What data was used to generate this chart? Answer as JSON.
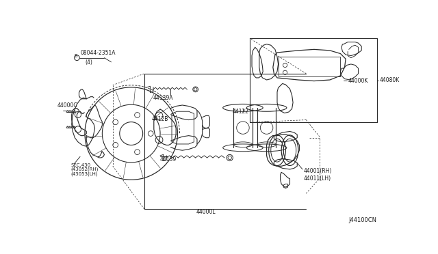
{
  "bg_color": "#ffffff",
  "line_color": "#2a2a2a",
  "label_color": "#1a1a1a",
  "diagram_id": "J44100CN",
  "labels": {
    "bolt": "B  08044-2351A\n     (4)",
    "hub": "44000C",
    "sec": "SEC.430\n(43052(RH)\n(43053(LH)",
    "slide_pin_a": "44139A",
    "caliper_bracket": "4412B",
    "slide_pin": "44139",
    "piston": "44122",
    "bracket_label": "44000L",
    "pad_set": "44000K",
    "pad_kit": "44080K",
    "caliper_rh_lh": "44001(RH)\n44011(LH)"
  },
  "font_size": 6.0,
  "small_font": 5.5
}
